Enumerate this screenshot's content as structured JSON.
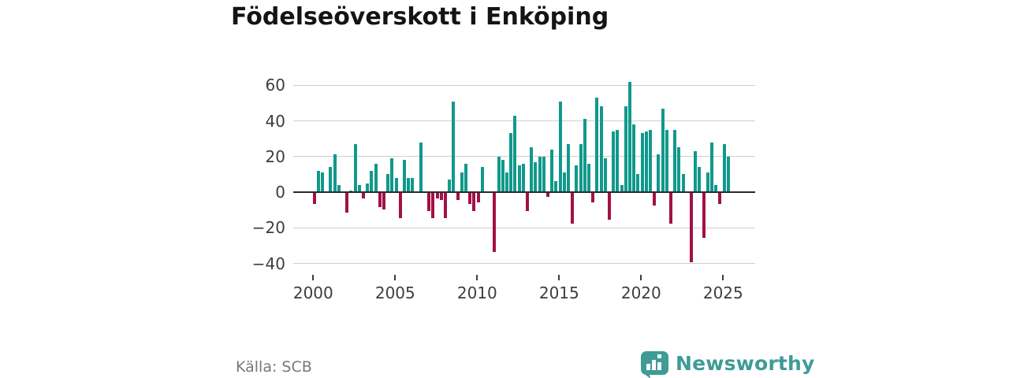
{
  "title": "Födelseöverskott i Enköping",
  "source": "Källa: SCB",
  "logo": {
    "text": "Newsworthy",
    "icon": "bar-chart-speech-bubble-icon",
    "color": "#3e9c95"
  },
  "chart_data": {
    "type": "bar",
    "title": "Födelseöverskott i Enköping",
    "xlabel": "",
    "ylabel": "",
    "frequency": "quarterly",
    "start_period": "2000-Q1",
    "end_period": "2025-Q2",
    "ylim": [
      -45,
      66
    ],
    "grid": "horizontal",
    "colors": {
      "positive": "#10998c",
      "negative": "#a31048"
    },
    "y_ticks": [
      {
        "label": "60",
        "value": 60
      },
      {
        "label": "40",
        "value": 40
      },
      {
        "label": "20",
        "value": 20
      },
      {
        "label": "0",
        "value": 0
      },
      {
        "label": "−20",
        "value": -20
      },
      {
        "label": "−40",
        "value": -40
      }
    ],
    "x_ticks": [
      {
        "label": "2000",
        "year": 2000
      },
      {
        "label": "2005",
        "year": 2005
      },
      {
        "label": "2010",
        "year": 2010
      },
      {
        "label": "2015",
        "year": 2015
      },
      {
        "label": "2020",
        "year": 2020
      },
      {
        "label": "2025",
        "year": 2025
      }
    ],
    "values": [
      -6,
      12,
      11,
      0,
      14,
      21,
      4,
      0,
      -11,
      1,
      27,
      4,
      -3,
      5,
      12,
      16,
      -8,
      -9,
      10,
      19,
      8,
      -14,
      18,
      8,
      8,
      0,
      28,
      0,
      -10,
      -14,
      -3,
      -4,
      -14,
      7,
      51,
      -4,
      11,
      16,
      -6,
      -10,
      -5,
      14,
      0,
      0,
      -33,
      20,
      18,
      11,
      33,
      43,
      15,
      16,
      -10,
      25,
      17,
      20,
      20,
      -2,
      24,
      6,
      51,
      11,
      27,
      -17,
      15,
      27,
      41,
      16,
      -5,
      53,
      48,
      19,
      -15,
      34,
      35,
      4,
      48,
      62,
      38,
      10,
      33,
      34,
      35,
      -7,
      21,
      47,
      35,
      -17,
      35,
      25,
      10,
      0,
      -39,
      23,
      14,
      -25,
      11,
      28,
      4,
      -6,
      27,
      20
    ]
  }
}
